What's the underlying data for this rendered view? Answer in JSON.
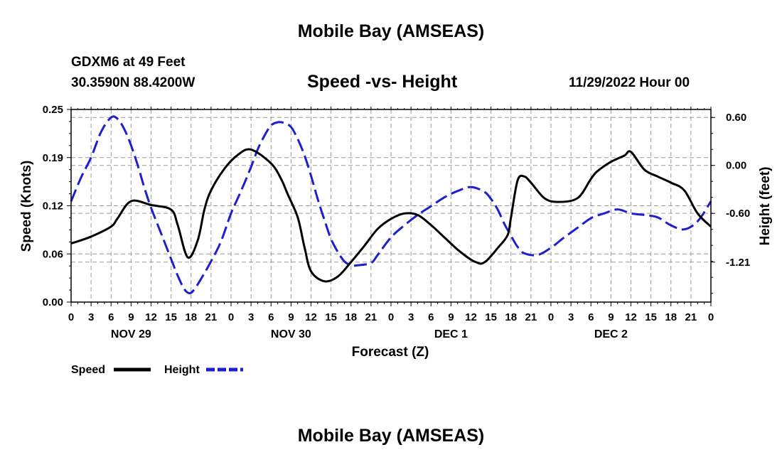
{
  "header": {
    "title": "Mobile Bay (AMSEAS)",
    "station": "GDXM6 at 49 Feet",
    "coordinates": "30.3590N  88.4200W",
    "chart_title": "Speed -vs- Height",
    "datetime": "11/29/2022 Hour 00"
  },
  "footer": {
    "title": "Mobile Bay (AMSEAS)"
  },
  "colors": {
    "speed": "#000000",
    "height": "#1f1fd0",
    "grid": "#9a9a9a"
  },
  "chart_data": {
    "type": "line",
    "title": "Speed -vs- Height",
    "xlabel": "Forecast (Z)",
    "ylabel": "Speed (Knots)",
    "y2label": "Height (feet)",
    "xlim": [
      0,
      96
    ],
    "ylim": [
      0,
      0.25
    ],
    "y2lim": [
      -1.71,
      0.7
    ],
    "yticks": [
      "0.00",
      "0.06",
      "0.12",
      "0.19",
      "0.25"
    ],
    "y2ticks": [
      "0.60",
      "0.00",
      "-0.60",
      "-1.21"
    ],
    "y2tick_values": [
      0.6,
      0.0,
      -0.6,
      -1.21
    ],
    "xtick_labels": [
      "0",
      "3",
      "6",
      "9",
      "12",
      "15",
      "18",
      "21",
      "0",
      "3",
      "6",
      "9",
      "12",
      "15",
      "18",
      "21",
      "0",
      "3",
      "6",
      "9",
      "12",
      "15",
      "18",
      "21",
      "0",
      "3",
      "6",
      "9",
      "12",
      "15",
      "18",
      "21",
      "0"
    ],
    "day_labels": [
      {
        "label": "NOV 29",
        "hour": 9
      },
      {
        "label": "NOV 30",
        "hour": 33
      },
      {
        "label": "DEC 1",
        "hour": 57
      },
      {
        "label": "DEC 2",
        "hour": 81
      }
    ],
    "legend": [
      {
        "label": "Speed",
        "series": "Speed"
      },
      {
        "label": "Height",
        "series": "Height"
      }
    ],
    "series": [
      {
        "name": "Speed",
        "axis": "left",
        "style": "solid",
        "x": [
          0,
          3,
          6,
          7,
          9,
          12,
          15,
          16,
          17.5,
          19,
          20,
          21,
          23,
          25,
          27,
          30,
          31.5,
          32.5,
          34,
          35,
          36,
          38,
          40,
          42,
          44,
          46,
          48,
          50,
          52,
          54,
          56,
          58,
          60,
          61,
          61.6,
          62.5,
          64,
          65.5,
          66,
          67,
          68,
          69,
          71,
          73,
          76,
          78,
          79,
          81,
          83,
          84,
          86,
          88,
          90,
          92,
          94,
          96
        ],
        "values": [
          0.076,
          0.085,
          0.098,
          0.109,
          0.131,
          0.126,
          0.12,
          0.1,
          0.058,
          0.08,
          0.12,
          0.145,
          0.173,
          0.191,
          0.198,
          0.18,
          0.16,
          0.14,
          0.11,
          0.072,
          0.04,
          0.027,
          0.033,
          0.052,
          0.073,
          0.095,
          0.108,
          0.115,
          0.113,
          0.1,
          0.084,
          0.068,
          0.055,
          0.051,
          0.05,
          0.055,
          0.07,
          0.087,
          0.11,
          0.158,
          0.163,
          0.155,
          0.135,
          0.13,
          0.135,
          0.16,
          0.17,
          0.182,
          0.19,
          0.195,
          0.172,
          0.163,
          0.155,
          0.145,
          0.115,
          0.098
        ]
      },
      {
        "name": "Height",
        "axis": "right",
        "style": "dashed",
        "x": [
          0,
          1.5,
          3,
          4.5,
          6,
          7,
          8,
          9,
          10,
          11,
          12,
          13.5,
          15,
          16,
          17,
          17.8,
          18.5,
          19.5,
          21,
          22.5,
          24,
          25.5,
          27,
          28,
          29,
          30,
          31,
          32,
          33,
          34,
          35,
          36,
          37,
          38,
          39,
          40,
          41,
          42,
          43,
          45,
          46,
          48,
          50,
          52,
          54,
          56,
          58,
          60,
          62,
          63,
          64,
          65,
          66,
          67,
          68,
          70,
          72,
          74,
          76,
          78,
          80,
          82,
          84,
          86,
          88,
          90,
          92,
          94,
          96
        ],
        "values": [
          -0.45,
          -0.15,
          0.1,
          0.42,
          0.6,
          0.58,
          0.45,
          0.25,
          0.0,
          -0.28,
          -0.53,
          -0.85,
          -1.17,
          -1.38,
          -1.55,
          -1.6,
          -1.55,
          -1.42,
          -1.2,
          -0.95,
          -0.6,
          -0.32,
          -0.02,
          0.2,
          0.37,
          0.5,
          0.54,
          0.53,
          0.48,
          0.33,
          0.13,
          -0.13,
          -0.42,
          -0.68,
          -0.92,
          -1.08,
          -1.2,
          -1.25,
          -1.25,
          -1.22,
          -1.12,
          -0.9,
          -0.75,
          -0.62,
          -0.51,
          -0.4,
          -0.32,
          -0.27,
          -0.33,
          -0.42,
          -0.55,
          -0.73,
          -0.88,
          -1.02,
          -1.1,
          -1.12,
          -1.03,
          -0.9,
          -0.78,
          -0.66,
          -0.6,
          -0.55,
          -0.6,
          -0.62,
          -0.65,
          -0.75,
          -0.8,
          -0.7,
          -0.45
        ]
      }
    ]
  }
}
